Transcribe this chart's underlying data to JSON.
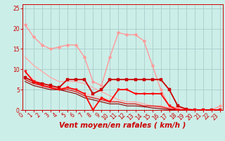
{
  "background_color": "#cceee8",
  "grid_color": "#aacccc",
  "xlabel": "Vent moyen/en rafales ( km/h )",
  "xlabel_color": "#cc0000",
  "xlabel_fontsize": 7.5,
  "yticks": [
    0,
    5,
    10,
    15,
    20,
    25
  ],
  "xticks": [
    0,
    1,
    2,
    3,
    4,
    5,
    6,
    7,
    8,
    9,
    10,
    11,
    12,
    13,
    14,
    15,
    16,
    17,
    18,
    19,
    20,
    21,
    22,
    23
  ],
  "xlim": [
    -0.3,
    23.3
  ],
  "ylim": [
    0,
    26
  ],
  "lines": [
    {
      "x": [
        0,
        1,
        2,
        3,
        4,
        5,
        6,
        7,
        8,
        9,
        10,
        11,
        12,
        13,
        14,
        15,
        16,
        17,
        18,
        19,
        20,
        21,
        22,
        23
      ],
      "y": [
        21,
        18,
        16,
        15,
        15.5,
        16,
        16,
        13,
        7,
        6,
        13,
        19,
        18.5,
        18.5,
        17,
        11,
        5,
        1,
        0.5,
        0.2,
        0,
        0,
        0,
        1
      ],
      "color": "#ff9999",
      "lw": 1.0,
      "marker": "D",
      "ms": 2.5,
      "zorder": 3
    },
    {
      "x": [
        0,
        1,
        2,
        3,
        4,
        5,
        6,
        7,
        8,
        9,
        10,
        11,
        12,
        13,
        14,
        15,
        16,
        17,
        18,
        19,
        20,
        21,
        22,
        23
      ],
      "y": [
        13,
        11,
        9.5,
        8,
        7,
        7,
        7,
        6.5,
        5.5,
        4.5,
        3.5,
        2.5,
        2,
        2,
        1.5,
        1,
        1,
        0.5,
        0.2,
        0,
        0,
        0,
        0,
        0
      ],
      "color": "#ffaaaa",
      "lw": 1.0,
      "marker": null,
      "ms": 0,
      "zorder": 2
    },
    {
      "x": [
        0,
        1,
        2,
        3,
        4,
        5,
        6,
        7,
        8,
        9,
        10,
        11,
        12,
        13,
        14,
        15,
        16,
        17,
        18,
        19,
        20,
        21,
        22,
        23
      ],
      "y": [
        9.5,
        7.5,
        6.5,
        6,
        5.5,
        5.5,
        5,
        4,
        3.5,
        3,
        2.5,
        2,
        1.5,
        1.5,
        1,
        0.8,
        0.5,
        0.2,
        0,
        0,
        0,
        0,
        0,
        0
      ],
      "color": "#ffbbbb",
      "lw": 0.8,
      "marker": null,
      "ms": 0,
      "zorder": 2
    },
    {
      "x": [
        0,
        1,
        2,
        3,
        4,
        5,
        6,
        7,
        8,
        9,
        10,
        11,
        12,
        13,
        14,
        15,
        16,
        17,
        18,
        19,
        20,
        21,
        22,
        23
      ],
      "y": [
        8,
        7,
        6.5,
        6,
        5.5,
        7.5,
        7.5,
        7.5,
        4,
        5,
        7.5,
        7.5,
        7.5,
        7.5,
        7.5,
        7.5,
        7.5,
        5,
        1,
        0.2,
        0,
        0,
        0,
        0
      ],
      "color": "#cc0000",
      "lw": 1.3,
      "marker": "s",
      "ms": 2.5,
      "zorder": 4
    },
    {
      "x": [
        0,
        1,
        2,
        3,
        4,
        5,
        6,
        7,
        8,
        9,
        10,
        11,
        12,
        13,
        14,
        15,
        16,
        17,
        18,
        19,
        20,
        21,
        22,
        23
      ],
      "y": [
        9.5,
        7,
        6,
        5.5,
        5,
        5.5,
        5,
        4,
        0,
        3,
        2,
        5,
        5,
        4,
        4,
        4,
        4,
        1,
        0,
        0,
        0,
        0,
        0,
        0
      ],
      "color": "#ff0000",
      "lw": 1.3,
      "marker": "v",
      "ms": 2.5,
      "zorder": 4
    },
    {
      "x": [
        0,
        1,
        2,
        3,
        4,
        5,
        6,
        7,
        8,
        9,
        10,
        11,
        12,
        13,
        14,
        15,
        16,
        17,
        18,
        19,
        20,
        21,
        22,
        23
      ],
      "y": [
        7.5,
        6.5,
        6,
        5.5,
        5,
        5,
        4.5,
        3.5,
        3,
        2.5,
        2,
        2,
        1.5,
        1.5,
        1,
        1,
        0.8,
        0.3,
        0,
        0,
        0,
        0,
        0,
        0
      ],
      "color": "#dd2222",
      "lw": 1.0,
      "marker": null,
      "ms": 0,
      "zorder": 2
    },
    {
      "x": [
        0,
        1,
        2,
        3,
        4,
        5,
        6,
        7,
        8,
        9,
        10,
        11,
        12,
        13,
        14,
        15,
        16,
        17,
        18,
        19,
        20,
        21,
        22,
        23
      ],
      "y": [
        7,
        6,
        5.5,
        5,
        5,
        4.5,
        4,
        3,
        2.5,
        2,
        1.5,
        1.5,
        1,
        1,
        0.8,
        0.5,
        0.3,
        0.1,
        0,
        0,
        0,
        0,
        0,
        0
      ],
      "color": "#880000",
      "lw": 0.8,
      "marker": null,
      "ms": 0,
      "zorder": 2
    }
  ],
  "tick_color": "#cc0000",
  "tick_fontsize": 5.5,
  "ylabel_fontsize": 6.0
}
